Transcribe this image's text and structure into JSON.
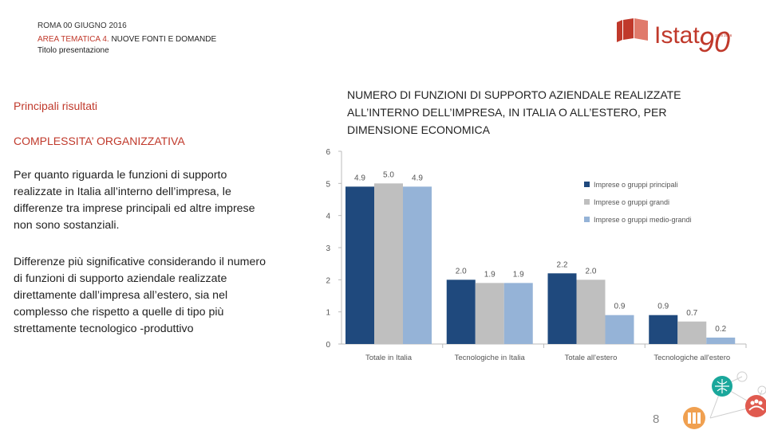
{
  "header": {
    "line1": "ROMA 00 GIUGNO 2016",
    "line2_prefix": "AREA TEMATICA 4.",
    "line2_rest": " NUOVE FONTI E DOMANDE",
    "line3": "Titolo presentazione"
  },
  "logo": {
    "text": "Istat",
    "number": "90",
    "small": "1926 2016"
  },
  "left": {
    "heading": "Principali risultati",
    "subheading": "COMPLESSITA’ ORGANIZZATIVA",
    "para1": "Per quanto riguarda le funzioni di supporto realizzate in Italia all’interno dell’impresa, le differenze tra imprese principali ed altre imprese non sono sostanziali.",
    "para2": "Differenze più significative considerando il numero di funzioni di supporto aziendale realizzate direttamente dall’impresa all’estero, sia nel complesso che rispetto a quelle di tipo più strettamente tecnologico -produttivo"
  },
  "page_number": "8",
  "colors": {
    "red": "#c0392b",
    "s1": "#1f497d",
    "s2": "#bfbfbf",
    "s3": "#95b3d7"
  },
  "chart_data": {
    "type": "bar",
    "title": "NUMERO DI FUNZIONI DI SUPPORTO AZIENDALE REALIZZATE ALL’INTERNO DELL’IMPRESA, IN ITALIA O ALL’ESTERO, PER DIMENSIONE ECONOMICA",
    "categories": [
      "Totale in Italia",
      "Tecnologiche in Italia",
      "Totale all'estero",
      "Tecnologiche all'estero"
    ],
    "series": [
      {
        "name": "Imprese o gruppi principali",
        "values": [
          4.9,
          2.0,
          2.2,
          0.9
        ],
        "labels": [
          "4.9",
          "2.0",
          "2.2",
          "0.9"
        ]
      },
      {
        "name": "Imprese o gruppi grandi",
        "values": [
          5.0,
          1.9,
          2.0,
          0.7
        ],
        "labels": [
          "5.0",
          "1.9",
          "2.0",
          "0.7"
        ]
      },
      {
        "name": "Imprese o gruppi medio-grandi",
        "values": [
          4.9,
          1.9,
          0.9,
          0.2
        ],
        "labels": [
          "4.9",
          "1.9",
          "0.9",
          "0.2"
        ]
      }
    ],
    "yticks": [
      "0",
      "1",
      "2",
      "3",
      "4",
      "5",
      "6"
    ],
    "ylim": [
      0,
      6
    ],
    "legend_position": "top-right"
  }
}
